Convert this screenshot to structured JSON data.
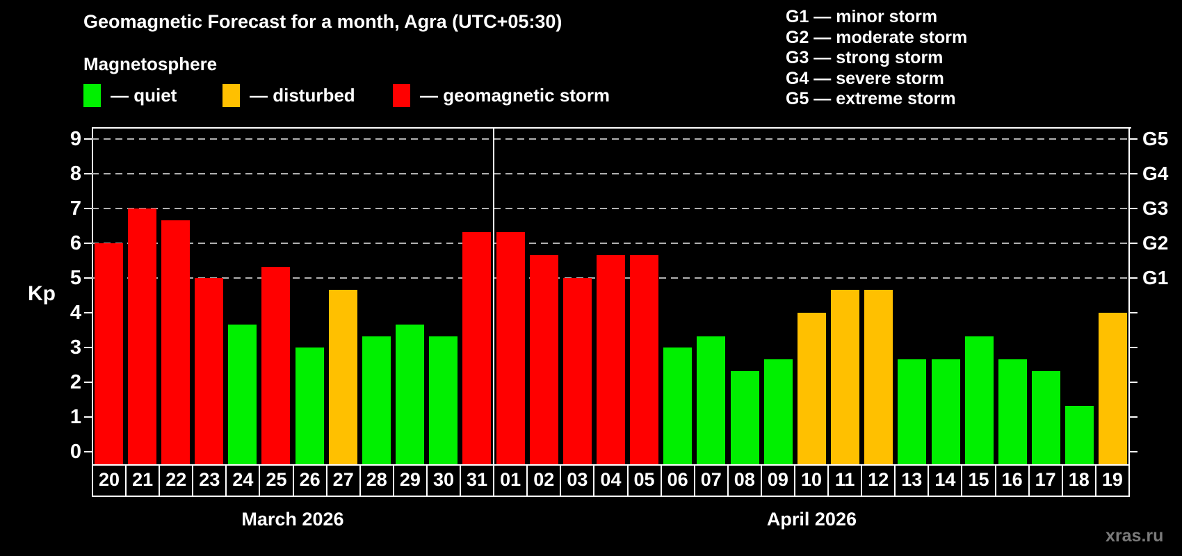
{
  "header": {
    "title": "Geomagnetic Forecast for a month, Agra (UTC+05:30)",
    "subtitle": "Magnetosphere",
    "legend": [
      {
        "status": "quiet",
        "label": "— quiet",
        "color": "#00f000"
      },
      {
        "status": "disturbed",
        "label": "— disturbed",
        "color": "#ffc000"
      },
      {
        "status": "storm",
        "label": "— geomagnetic storm",
        "color": "#ff0000"
      }
    ],
    "g_scale": [
      "G1 — minor storm",
      "G2 — moderate storm",
      "G3 — strong storm",
      "G4 — severe storm",
      "G5 — extreme storm"
    ]
  },
  "chart_data": {
    "type": "bar",
    "title": "Geomagnetic Forecast for a month, Agra (UTC+05:30)",
    "xlabel": "",
    "ylabel": "Kp",
    "ylim": [
      0,
      9
    ],
    "grid": "dashed horizontal at Kp 5-9 only",
    "gridlines_at": [
      5,
      6,
      7,
      8,
      9
    ],
    "y_ticks": [
      0,
      1,
      2,
      3,
      4,
      5,
      6,
      7,
      8,
      9
    ],
    "right_axis": [
      {
        "kp": 5,
        "label": "G1"
      },
      {
        "kp": 6,
        "label": "G2"
      },
      {
        "kp": 7,
        "label": "G3"
      },
      {
        "kp": 8,
        "label": "G4"
      },
      {
        "kp": 9,
        "label": "G5"
      }
    ],
    "categories": [
      "20",
      "21",
      "22",
      "23",
      "24",
      "25",
      "26",
      "27",
      "28",
      "29",
      "30",
      "31",
      "01",
      "02",
      "03",
      "04",
      "05",
      "06",
      "07",
      "08",
      "09",
      "10",
      "11",
      "12",
      "13",
      "14",
      "15",
      "16",
      "17",
      "18",
      "19"
    ],
    "values": [
      6.0,
      7.0,
      6.67,
      5.0,
      3.67,
      5.33,
      3.0,
      4.67,
      3.33,
      3.67,
      3.33,
      6.33,
      6.33,
      5.67,
      5.0,
      5.67,
      5.67,
      3.0,
      3.33,
      2.33,
      2.67,
      4.0,
      4.67,
      4.67,
      2.67,
      2.67,
      3.33,
      2.67,
      2.33,
      1.33,
      4.0
    ],
    "statuses": [
      "storm",
      "storm",
      "storm",
      "storm",
      "quiet",
      "storm",
      "quiet",
      "disturbed",
      "quiet",
      "quiet",
      "quiet",
      "storm",
      "storm",
      "storm",
      "storm",
      "storm",
      "storm",
      "quiet",
      "quiet",
      "quiet",
      "quiet",
      "disturbed",
      "disturbed",
      "disturbed",
      "quiet",
      "quiet",
      "quiet",
      "quiet",
      "quiet",
      "quiet",
      "disturbed"
    ],
    "colors": {
      "quiet": "#00f000",
      "disturbed": "#ffc000",
      "storm": "#ff0000"
    },
    "months": [
      {
        "label": "March 2026",
        "days": 12
      },
      {
        "label": "April 2026",
        "days": 19
      }
    ],
    "legend_position": "top-left"
  },
  "watermark": "xras.ru"
}
